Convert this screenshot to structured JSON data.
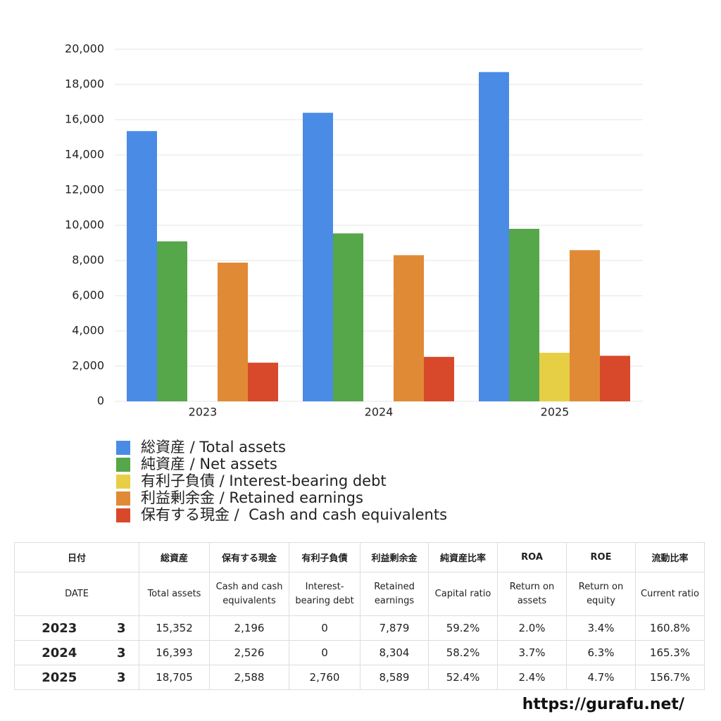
{
  "chart_data": {
    "type": "bar",
    "categories": [
      "2023",
      "2024",
      "2025"
    ],
    "series": [
      {
        "name": "総資産 / Total assets",
        "color": "#4a8be6",
        "values": [
          15352,
          16393,
          18705
        ]
      },
      {
        "name": "純資産 / Net assets",
        "color": "#56a64a",
        "values": [
          9088,
          9541,
          9801
        ]
      },
      {
        "name": "有利子負債 / Interest-bearing debt",
        "color": "#e6cf45",
        "values": [
          0,
          0,
          2760
        ]
      },
      {
        "name": "利益剰余金 / Retained earnings",
        "color": "#e08a36",
        "values": [
          7879,
          8304,
          8589
        ]
      },
      {
        "name": "保有する現金 /  Cash and cash equivalents",
        "color": "#d8492b",
        "values": [
          2196,
          2526,
          2588
        ]
      }
    ],
    "ylim": [
      0,
      20000
    ],
    "yticks": [
      0,
      {
        "value": 2000,
        "label": "2,000"
      },
      {
        "value": 4000,
        "label": "4,000"
      },
      {
        "value": 6000,
        "label": "6,000"
      },
      {
        "value": 8000,
        "label": "8,000"
      },
      {
        "value": 10000,
        "label": "10,000"
      },
      {
        "value": 12000,
        "label": "12,000"
      },
      {
        "value": 14000,
        "label": "14,000"
      },
      {
        "value": 16000,
        "label": "16,000"
      },
      {
        "value": 18000,
        "label": "18,000"
      },
      {
        "value": 20000,
        "label": "20,000"
      }
    ],
    "grid": true
  },
  "table": {
    "header_ja": [
      "日付",
      "総資産",
      "保有する現金",
      "有利子負債",
      "利益剰余金",
      "純資産比率",
      "ROA",
      "ROE",
      "流動比率"
    ],
    "header_en": [
      "DATE",
      "Total assets",
      "Cash and cash equivalents",
      "Interest-bearing debt",
      "Retained earnings",
      "Capital ratio",
      "Return on assets",
      "Return on equity",
      "Current ratio"
    ],
    "rows": [
      [
        "2023",
        "3",
        "15,352",
        "2,196",
        "0",
        "7,879",
        "59.2%",
        "2.0%",
        "3.4%",
        "160.8%"
      ],
      [
        "2024",
        "3",
        "16,393",
        "2,526",
        "0",
        "8,304",
        "58.2%",
        "3.7%",
        "6.3%",
        "165.3%"
      ],
      [
        "2025",
        "3",
        "18,705",
        "2,588",
        "2,760",
        "8,589",
        "52.4%",
        "2.4%",
        "4.7%",
        "156.7%"
      ]
    ]
  },
  "footer": {
    "url": "https://gurafu.net/"
  }
}
